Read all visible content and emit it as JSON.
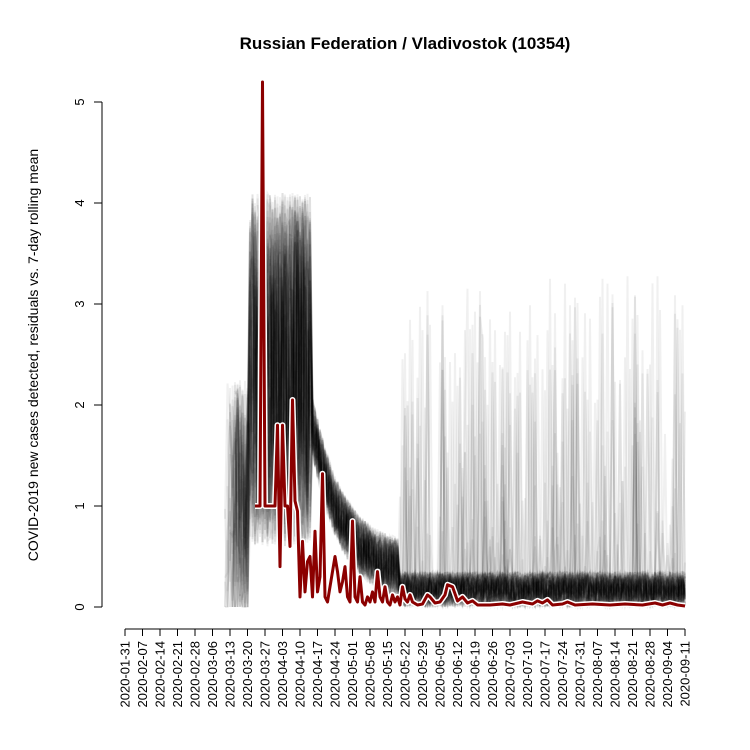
{
  "chart_data": {
    "type": "line",
    "title": "Russian Federation / Vladivostok (10354)",
    "xlabel": "",
    "ylabel": "COVID-2019 new cases detected, residuals vs. 7-day rolling mean",
    "xlim": [
      "2020-01-31",
      "2020-09-11"
    ],
    "ylim": [
      0,
      5
    ],
    "yticks": [
      0,
      1,
      2,
      3,
      4,
      5
    ],
    "xticks": [
      "2020-01-31",
      "2020-02-07",
      "2020-02-14",
      "2020-02-21",
      "2020-02-28",
      "2020-03-06",
      "2020-03-13",
      "2020-03-20",
      "2020-03-27",
      "2020-04-03",
      "2020-04-10",
      "2020-04-17",
      "2020-04-24",
      "2020-05-01",
      "2020-05-08",
      "2020-05-15",
      "2020-05-22",
      "2020-05-29",
      "2020-06-05",
      "2020-06-12",
      "2020-06-19",
      "2020-06-26",
      "2020-07-03",
      "2020-07-10",
      "2020-07-17",
      "2020-07-24",
      "2020-07-31",
      "2020-08-07",
      "2020-08-14",
      "2020-08-21",
      "2020-08-28",
      "2020-09-04",
      "2020-09-11"
    ],
    "grid": false,
    "legend": "none",
    "colors": {
      "highlight": "#8b0000",
      "highlight_outline": "#ffffff",
      "background_series": "#000000"
    },
    "series": [
      {
        "points": [
          [
            "2020-03-23",
            1.0
          ],
          [
            "2020-03-25",
            1.0
          ],
          [
            "2020-03-26",
            5.2
          ],
          [
            "2020-03-27",
            1.0
          ],
          [
            "2020-03-31",
            1.0
          ],
          [
            "2020-04-01",
            1.8
          ],
          [
            "2020-04-02",
            0.4
          ],
          [
            "2020-04-03",
            1.8
          ],
          [
            "2020-04-04",
            1.0
          ],
          [
            "2020-04-05",
            1.0
          ],
          [
            "2020-04-06",
            0.6
          ],
          [
            "2020-04-07",
            2.05
          ],
          [
            "2020-04-08",
            1.05
          ],
          [
            "2020-04-09",
            0.95
          ],
          [
            "2020-04-10",
            0.1
          ],
          [
            "2020-04-11",
            0.65
          ],
          [
            "2020-04-12",
            0.15
          ],
          [
            "2020-04-13",
            0.45
          ],
          [
            "2020-04-14",
            0.5
          ],
          [
            "2020-04-15",
            0.1
          ],
          [
            "2020-04-16",
            0.75
          ],
          [
            "2020-04-17",
            0.15
          ],
          [
            "2020-04-18",
            0.3
          ],
          [
            "2020-04-19",
            1.32
          ],
          [
            "2020-04-20",
            0.1
          ],
          [
            "2020-04-21",
            0.05
          ],
          [
            "2020-04-22",
            0.2
          ],
          [
            "2020-04-24",
            0.5
          ],
          [
            "2020-04-25",
            0.35
          ],
          [
            "2020-04-26",
            0.15
          ],
          [
            "2020-04-27",
            0.25
          ],
          [
            "2020-04-28",
            0.4
          ],
          [
            "2020-04-29",
            0.1
          ],
          [
            "2020-04-30",
            0.05
          ],
          [
            "2020-05-01",
            0.85
          ],
          [
            "2020-05-02",
            0.1
          ],
          [
            "2020-05-03",
            0.05
          ],
          [
            "2020-05-04",
            0.3
          ],
          [
            "2020-05-05",
            0.05
          ],
          [
            "2020-05-06",
            0.02
          ],
          [
            "2020-05-07",
            0.1
          ],
          [
            "2020-05-08",
            0.05
          ],
          [
            "2020-05-09",
            0.15
          ],
          [
            "2020-05-10",
            0.05
          ],
          [
            "2020-05-11",
            0.35
          ],
          [
            "2020-05-12",
            0.1
          ],
          [
            "2020-05-13",
            0.05
          ],
          [
            "2020-05-14",
            0.2
          ],
          [
            "2020-05-15",
            0.05
          ],
          [
            "2020-05-16",
            0.02
          ],
          [
            "2020-05-17",
            0.12
          ],
          [
            "2020-05-18",
            0.05
          ],
          [
            "2020-05-19",
            0.1
          ],
          [
            "2020-05-20",
            0.02
          ],
          [
            "2020-05-21",
            0.2
          ],
          [
            "2020-05-22",
            0.08
          ],
          [
            "2020-05-23",
            0.05
          ],
          [
            "2020-05-24",
            0.12
          ],
          [
            "2020-05-25",
            0.05
          ],
          [
            "2020-05-27",
            0.02
          ],
          [
            "2020-05-29",
            0.03
          ],
          [
            "2020-05-31",
            0.12
          ],
          [
            "2020-06-01",
            0.1
          ],
          [
            "2020-06-03",
            0.04
          ],
          [
            "2020-06-05",
            0.05
          ],
          [
            "2020-06-07",
            0.12
          ],
          [
            "2020-06-08",
            0.22
          ],
          [
            "2020-06-10",
            0.2
          ],
          [
            "2020-06-12",
            0.06
          ],
          [
            "2020-06-14",
            0.1
          ],
          [
            "2020-06-16",
            0.04
          ],
          [
            "2020-06-18",
            0.06
          ],
          [
            "2020-06-20",
            0.02
          ],
          [
            "2020-06-25",
            0.02
          ],
          [
            "2020-06-30",
            0.03
          ],
          [
            "2020-07-03",
            0.02
          ],
          [
            "2020-07-08",
            0.05
          ],
          [
            "2020-07-12",
            0.03
          ],
          [
            "2020-07-14",
            0.06
          ],
          [
            "2020-07-16",
            0.04
          ],
          [
            "2020-07-18",
            0.07
          ],
          [
            "2020-07-20",
            0.02
          ],
          [
            "2020-07-24",
            0.03
          ],
          [
            "2020-07-26",
            0.05
          ],
          [
            "2020-07-29",
            0.02
          ],
          [
            "2020-08-05",
            0.03
          ],
          [
            "2020-08-12",
            0.02
          ],
          [
            "2020-08-18",
            0.03
          ],
          [
            "2020-08-25",
            0.02
          ],
          [
            "2020-08-30",
            0.04
          ],
          [
            "2020-09-02",
            0.02
          ],
          [
            "2020-09-05",
            0.04
          ],
          [
            "2020-09-08",
            0.02
          ],
          [
            "2020-09-11",
            0.01
          ]
        ]
      }
    ]
  }
}
